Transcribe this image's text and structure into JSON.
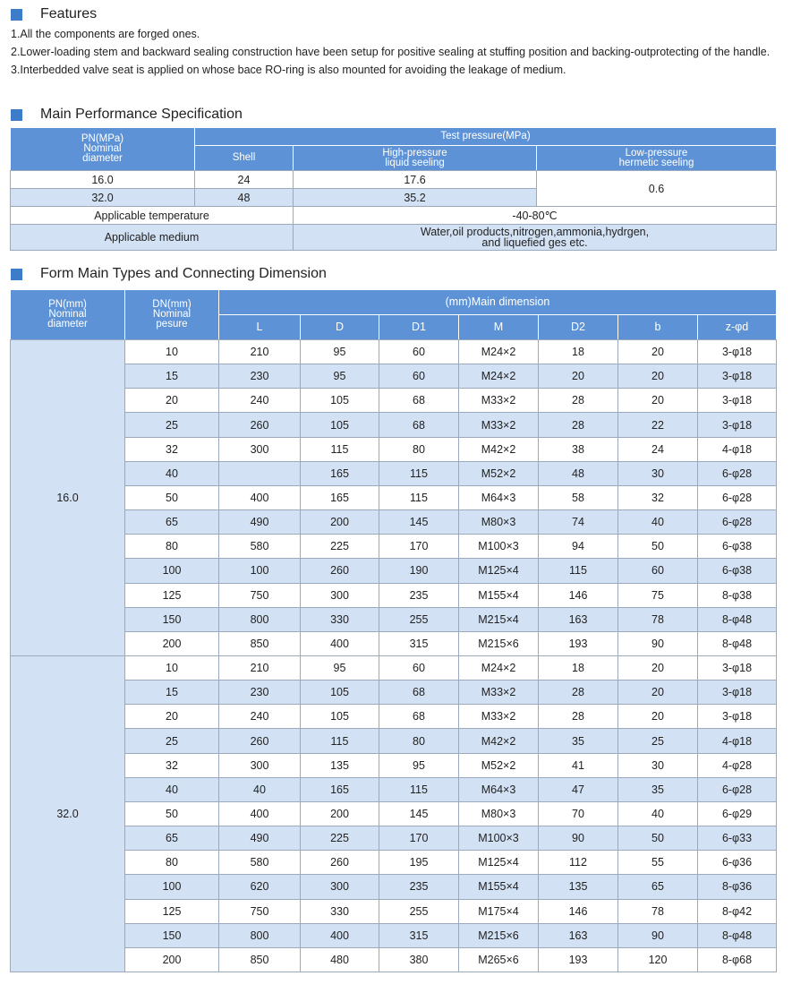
{
  "features": {
    "title": "Features",
    "items": [
      "1.All the components are forged ones.",
      "2.Lower-loading stem and backward sealing construction have been setup for positive sealing at stuffing position and backing-outprotecting of the handle.",
      "3.Interbedded valve seat is applied on whose bace RO-ring is also mounted for avoiding the leakage of medium."
    ]
  },
  "performance": {
    "title": "Main Performance Specification",
    "header": {
      "pn": [
        "PN(MPa)",
        "Nominal",
        "diameter"
      ],
      "test": "Test pressure(MPa)",
      "shell": "Shell",
      "high": [
        "High-pressure",
        "liquid seeling"
      ],
      "low": [
        "Low-pressure",
        "hermetic seeling"
      ]
    },
    "rows": [
      [
        "16.0",
        "24",
        "17.6"
      ],
      [
        "32.0",
        "48",
        "35.2"
      ]
    ],
    "low_value": "0.6",
    "temperature": {
      "label": "Applicable temperature",
      "value": "-40-80℃"
    },
    "medium": {
      "label": "Applicable medium",
      "value": [
        "Water,oil products,nitrogen,ammonia,hydrgen,",
        "and liquefied ges etc."
      ]
    }
  },
  "dimensions": {
    "title": "Form Main Types and Connecting Dimension",
    "header": {
      "pn": [
        "PN(mm)",
        "Nominal",
        "diameter"
      ],
      "dn": [
        "DN(mm)",
        "Nominal",
        "pesure"
      ],
      "main": "(mm)Main dimension",
      "columns": [
        "L",
        "D",
        "D1",
        "M",
        "D2",
        "b",
        "z-φd"
      ]
    },
    "groups": [
      {
        "pn": "16.0",
        "rows": [
          [
            "10",
            "210",
            "95",
            "60",
            "M24×2",
            "18",
            "20",
            "3-φ18"
          ],
          [
            "15",
            "230",
            "95",
            "60",
            "M24×2",
            "20",
            "20",
            "3-φ18"
          ],
          [
            "20",
            "240",
            "105",
            "68",
            "M33×2",
            "28",
            "20",
            "3-φ18"
          ],
          [
            "25",
            "260",
            "105",
            "68",
            "M33×2",
            "28",
            "22",
            "3-φ18"
          ],
          [
            "32",
            "300",
            "115",
            "80",
            "M42×2",
            "38",
            "24",
            "4-φ18"
          ],
          [
            "40",
            null,
            "165",
            "115",
            "M52×2",
            "48",
            "30",
            "6-φ28"
          ],
          [
            "50",
            "400",
            "165",
            "115",
            "M64×3",
            "58",
            "32",
            "6-φ28"
          ],
          [
            "65",
            "490",
            "200",
            "145",
            "M80×3",
            "74",
            "40",
            "6-φ28"
          ],
          [
            "80",
            "580",
            "225",
            "170",
            "M100×3",
            "94",
            "50",
            "6-φ38"
          ],
          [
            "100",
            "100",
            "260",
            "190",
            "M125×4",
            "115",
            "60",
            "6-φ38"
          ],
          [
            "125",
            "750",
            "300",
            "235",
            "M155×4",
            "146",
            "75",
            "8-φ38"
          ],
          [
            "150",
            "800",
            "330",
            "255",
            "M215×4",
            "163",
            "78",
            "8-φ48"
          ],
          [
            "200",
            "850",
            "400",
            "315",
            "M215×6",
            "193",
            "90",
            "8-φ48"
          ]
        ]
      },
      {
        "pn": "32.0",
        "rows": [
          [
            "10",
            "210",
            "95",
            "60",
            "M24×2",
            "18",
            "20",
            "3-φ18"
          ],
          [
            "15",
            "230",
            "105",
            "68",
            "M33×2",
            "28",
            "20",
            "3-φ18"
          ],
          [
            "20",
            "240",
            "105",
            "68",
            "M33×2",
            "28",
            "20",
            "3-φ18"
          ],
          [
            "25",
            "260",
            "115",
            "80",
            "M42×2",
            "35",
            "25",
            "4-φ18"
          ],
          [
            "32",
            "300",
            "135",
            "95",
            "M52×2",
            "41",
            "30",
            "4-φ28"
          ],
          [
            "40",
            "40",
            "165",
            "115",
            "M64×3",
            "47",
            "35",
            "6-φ28"
          ],
          [
            "50",
            "400",
            "200",
            "145",
            "M80×3",
            "70",
            "40",
            "6-φ29"
          ],
          [
            "65",
            "490",
            "225",
            "170",
            "M100×3",
            "90",
            "50",
            "6-φ33"
          ],
          [
            "80",
            "580",
            "260",
            "195",
            "M125×4",
            "112",
            "55",
            "6-φ36"
          ],
          [
            "100",
            "620",
            "300",
            "235",
            "M155×4",
            "135",
            "65",
            "8-φ36"
          ],
          [
            "125",
            "750",
            "330",
            "255",
            "M175×4",
            "146",
            "78",
            "8-φ42"
          ],
          [
            "150",
            "800",
            "400",
            "315",
            "M215×6",
            "163",
            "90",
            "8-φ48"
          ],
          [
            "200",
            "850",
            "480",
            "380",
            "M265×6",
            "193",
            "120",
            "8-φ68"
          ]
        ]
      }
    ]
  }
}
